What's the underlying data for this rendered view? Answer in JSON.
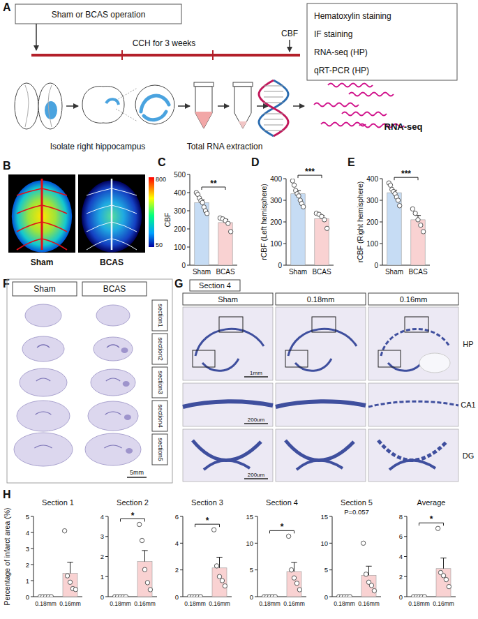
{
  "panel_labels": [
    "A",
    "B",
    "C",
    "D",
    "E",
    "F",
    "G",
    "H"
  ],
  "diagram": {
    "left_box": "Sham or BCAS operation",
    "timeline_label": "CCH for 3 weeks",
    "endpoint": "CBF",
    "right_box": [
      "Hematoxylin staining",
      "IF staining",
      "RNA-seq (HP)",
      "qRT-PCR (HP)"
    ],
    "steps": [
      "Isolate right hippocampus",
      "Total RNA extraction",
      "RNA-seq"
    ]
  },
  "images": {
    "b": {
      "labels": [
        "Sham",
        "BCAS"
      ],
      "colorbar": {
        "range": [
          50,
          800
        ]
      }
    },
    "f": {
      "headers": [
        "Sham",
        "BCAS"
      ],
      "rows": [
        "section1",
        "section2",
        "section3",
        "section4",
        "section5"
      ],
      "scale": "5mm"
    },
    "g": {
      "title": "Section 4",
      "columns": [
        "Sham",
        "0.18mm",
        "0.16mm"
      ],
      "rows": [
        "HP",
        "CA1",
        "DG"
      ],
      "scales": [
        "1mm",
        "200um",
        "200um"
      ]
    }
  },
  "chart_data": [
    {
      "type": "bar",
      "ylabel": "CBF",
      "categories": [
        "Sham",
        "BCAS"
      ],
      "values": [
        345,
        235
      ],
      "errors": [
        15,
        18
      ],
      "points": [
        [
          400,
          390,
          370,
          355,
          345,
          320,
          300,
          285
        ],
        [
          260,
          255,
          245,
          230,
          185
        ]
      ],
      "colors": [
        "#c6dcf4",
        "#f9d2d2"
      ],
      "ylim": [
        0,
        500
      ],
      "yticks": [
        0,
        100,
        200,
        300,
        400,
        500
      ],
      "annotations": [
        "**"
      ]
    },
    {
      "type": "bar",
      "ylabel": "rCBF (Left hemisphere)",
      "categories": [
        "Sham",
        "BCAS"
      ],
      "values": [
        330,
        215
      ],
      "errors": [
        15,
        15
      ],
      "points": [
        [
          390,
          370,
          345,
          330,
          320,
          300,
          285,
          270
        ],
        [
          240,
          235,
          225,
          210,
          170
        ]
      ],
      "colors": [
        "#c6dcf4",
        "#f9d2d2"
      ],
      "ylim": [
        0,
        400
      ],
      "yticks": [
        0,
        100,
        200,
        300,
        400
      ],
      "annotations": [
        "***"
      ]
    },
    {
      "type": "bar",
      "ylabel": "rCBF (Right hemisphere)",
      "categories": [
        "Sham",
        "BCAS"
      ],
      "values": [
        335,
        210
      ],
      "errors": [
        12,
        20
      ],
      "points": [
        [
          380,
          370,
          350,
          340,
          330,
          315,
          300,
          275
        ],
        [
          260,
          240,
          210,
          185,
          155
        ]
      ],
      "colors": [
        "#c6dcf4",
        "#f9d2d2"
      ],
      "ylim": [
        0,
        400
      ],
      "yticks": [
        0,
        100,
        200,
        300,
        400
      ],
      "annotations": [
        "***"
      ]
    },
    {
      "type": "bar",
      "title": "Section 1",
      "ylabel": "Percentage of infarct area (%)",
      "categories": [
        "0.18mm",
        "0.16mm"
      ],
      "values": [
        0,
        1.45
      ],
      "errors": [
        0,
        0.7
      ],
      "points": [
        [
          0,
          0,
          0,
          0,
          0
        ],
        [
          4.1,
          1.3,
          0.9,
          0.5,
          0.45
        ]
      ],
      "colors": [
        "#c6dcf4",
        "#f9d2d2"
      ],
      "ylim": [
        0,
        5
      ],
      "yticks": [
        0,
        1,
        2,
        3,
        4,
        5
      ]
    },
    {
      "type": "bar",
      "title": "Section 2",
      "categories": [
        "0.18mm",
        "0.16mm"
      ],
      "values": [
        0,
        1.75
      ],
      "errors": [
        0,
        0.55
      ],
      "points": [
        [
          0,
          0,
          0,
          0,
          0
        ],
        [
          3.6,
          2.8,
          1.35,
          0.7,
          0.35
        ]
      ],
      "colors": [
        "#c6dcf4",
        "#f9d2d2"
      ],
      "ylim": [
        0,
        4
      ],
      "yticks": [
        0,
        1,
        2,
        3,
        4
      ],
      "annotations": [
        "*"
      ]
    },
    {
      "type": "bar",
      "title": "Section 3",
      "categories": [
        "0.18mm",
        "0.16mm"
      ],
      "values": [
        0,
        2.15
      ],
      "errors": [
        0,
        0.8
      ],
      "points": [
        [
          0,
          0,
          0,
          0,
          0
        ],
        [
          5.0,
          2.3,
          1.5,
          1.2,
          0.8
        ]
      ],
      "colors": [
        "#c6dcf4",
        "#f9d2d2"
      ],
      "ylim": [
        0,
        6
      ],
      "yticks": [
        0,
        2,
        4,
        6
      ],
      "annotations": [
        "*"
      ]
    },
    {
      "type": "bar",
      "title": "Section 4",
      "categories": [
        "0.18mm",
        "0.16mm"
      ],
      "values": [
        0,
        4.7
      ],
      "errors": [
        0,
        1.7
      ],
      "points": [
        [
          0,
          0,
          0,
          0,
          0
        ],
        [
          11.3,
          5.0,
          3.5,
          2.5,
          1.3
        ]
      ],
      "colors": [
        "#c6dcf4",
        "#f9d2d2"
      ],
      "ylim": [
        0,
        15
      ],
      "yticks": [
        0,
        5,
        10,
        15
      ],
      "annotations": [
        "*"
      ]
    },
    {
      "type": "bar",
      "title": "Section 5",
      "categories": [
        "0.18mm",
        "0.16mm"
      ],
      "values": [
        0,
        4.0
      ],
      "errors": [
        0,
        1.7
      ],
      "points": [
        [
          0,
          0,
          0,
          0,
          0
        ],
        [
          10.0,
          4.2,
          2.7,
          2.1,
          1.1
        ]
      ],
      "colors": [
        "#c6dcf4",
        "#f9d2d2"
      ],
      "ylim": [
        0,
        15
      ],
      "yticks": [
        0,
        5,
        10,
        15
      ],
      "annotations": [
        "P=0.057"
      ]
    },
    {
      "type": "bar",
      "title": "Average",
      "categories": [
        "0.18mm",
        "0.16mm"
      ],
      "values": [
        0,
        2.8
      ],
      "errors": [
        0,
        1.05
      ],
      "points": [
        [
          0,
          0,
          0,
          0,
          0
        ],
        [
          6.8,
          2.4,
          2.1,
          1.7,
          1.0
        ]
      ],
      "colors": [
        "#c6dcf4",
        "#f9d2d2"
      ],
      "ylim": [
        0,
        8
      ],
      "yticks": [
        0,
        2,
        4,
        6,
        8
      ],
      "annotations": [
        "*"
      ]
    }
  ]
}
